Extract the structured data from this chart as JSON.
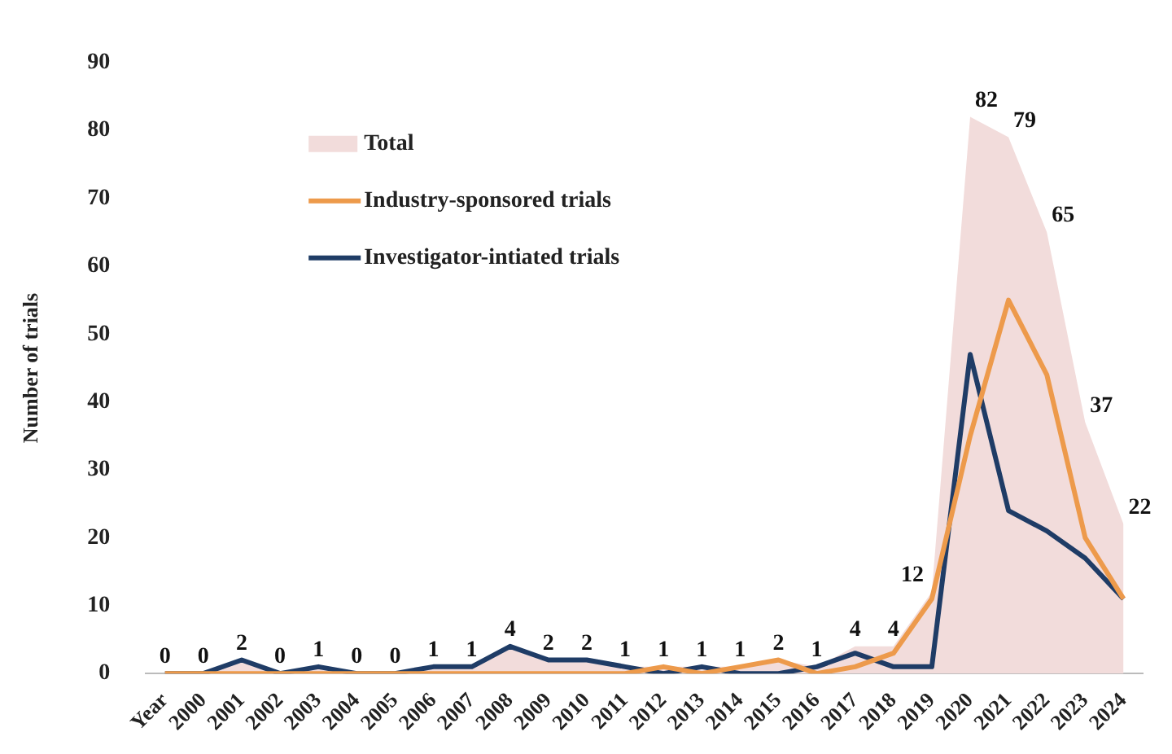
{
  "chart_data": {
    "type": "line",
    "ylabel": "Number of trials",
    "categories": [
      "Year",
      "2000",
      "2001",
      "2002",
      "2003",
      "2004",
      "2005",
      "2006",
      "2007",
      "2008",
      "2009",
      "2010",
      "2011",
      "2012",
      "2013",
      "2014",
      "2015",
      "2016",
      "2017",
      "2018",
      "2019",
      "2020",
      "2021",
      "2022",
      "2023",
      "2024"
    ],
    "series": [
      {
        "name": "Total",
        "type": "area",
        "color": "#f2dcdb",
        "values": [
          0,
          0,
          2,
          0,
          1,
          0,
          0,
          1,
          1,
          4,
          2,
          2,
          1,
          1,
          1,
          1,
          2,
          1,
          4,
          4,
          12,
          82,
          79,
          65,
          37,
          22
        ],
        "value_labels": [
          "0",
          "0",
          "2",
          "0",
          "1",
          "0",
          "0",
          "1",
          "1",
          "4",
          "2",
          "2",
          "1",
          "1",
          "1",
          "1",
          "2",
          "1",
          "4",
          "4",
          "12",
          "82",
          "79",
          "65",
          "37",
          "22"
        ]
      },
      {
        "name": "Industry-sponsored trials",
        "color": "#ed9a4b",
        "values": [
          0,
          0,
          0,
          0,
          0,
          0,
          0,
          0,
          0,
          0,
          0,
          0,
          0,
          1,
          0,
          1,
          2,
          0,
          1,
          3,
          11,
          35,
          55,
          44,
          20,
          11
        ]
      },
      {
        "name": "Investigator-intiated trials",
        "color": "#1f3c66",
        "values": [
          0,
          0,
          2,
          0,
          1,
          0,
          0,
          1,
          1,
          4,
          2,
          2,
          1,
          0,
          1,
          0,
          0,
          1,
          3,
          1,
          1,
          47,
          24,
          21,
          17,
          11
        ]
      }
    ],
    "ylim": [
      0,
      90
    ],
    "yticks": [
      0,
      10,
      20,
      30,
      40,
      50,
      60,
      70,
      80,
      90
    ],
    "grid": false,
    "legend": "top left",
    "marker": "none",
    "line_style": "solid"
  }
}
